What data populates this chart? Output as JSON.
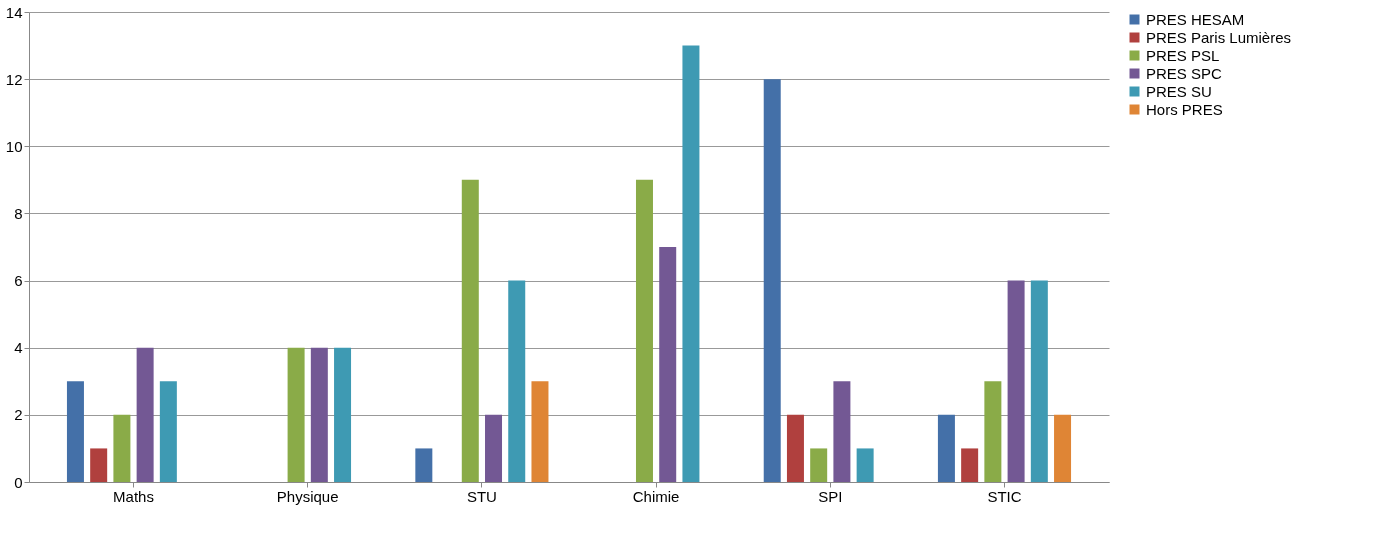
{
  "chart_data": {
    "type": "bar",
    "categories": [
      "Maths",
      "Physique",
      "STU",
      "Chimie",
      "SPI",
      "STIC"
    ],
    "series": [
      {
        "name": "PRES HESAM",
        "color": "#4470a8",
        "values": [
          3,
          0,
          1,
          0,
          12,
          2
        ]
      },
      {
        "name": "PRES Paris Lumières",
        "color": "#b0403e",
        "values": [
          1,
          0,
          0,
          0,
          2,
          1
        ]
      },
      {
        "name": "PRES PSL",
        "color": "#8aab48",
        "values": [
          2,
          4,
          9,
          9,
          1,
          3
        ]
      },
      {
        "name": "PRES SPC",
        "color": "#735894",
        "values": [
          4,
          4,
          2,
          7,
          3,
          6
        ]
      },
      {
        "name": "PRES SU",
        "color": "#3e9ab3",
        "values": [
          3,
          4,
          6,
          13,
          1,
          6
        ]
      },
      {
        "name": "Hors PRES",
        "color": "#df8535",
        "values": [
          0,
          0,
          3,
          0,
          0,
          2
        ]
      }
    ],
    "ylim": [
      0,
      14
    ],
    "yticks": [
      0,
      2,
      4,
      6,
      8,
      10,
      12,
      14
    ],
    "grid": "y",
    "legend": "right"
  }
}
